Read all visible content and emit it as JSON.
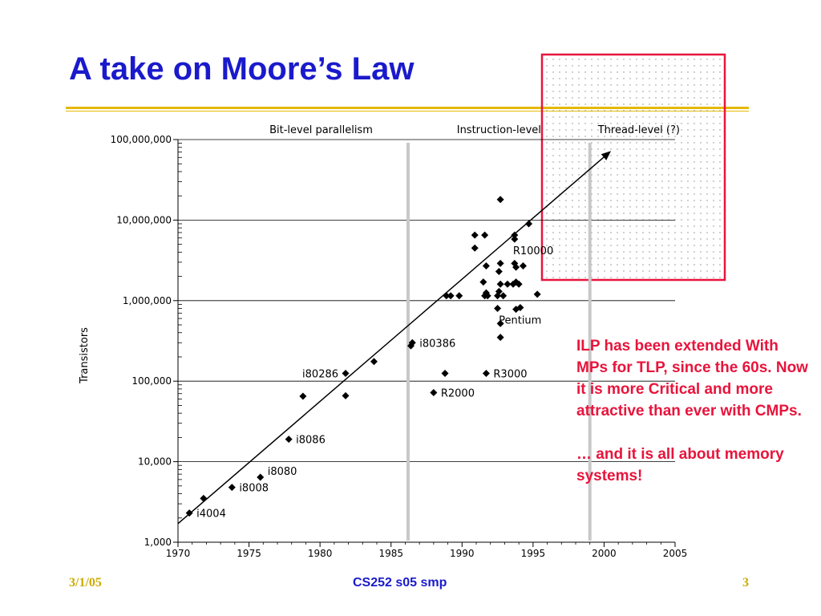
{
  "slide": {
    "title": "A take on Moore’s Law",
    "note_line1": "ILP has been extended With MPs for TLP, since the 60s.  Now it is more Critical and more attractive than ever with CMPs.",
    "note_line2": "… and it is all about memory systems!",
    "footer_left": "3/1/05",
    "footer_center": "CS252 s05 smp",
    "footer_right": "3"
  },
  "colors": {
    "title": "#1a1acc",
    "rule": "#e6b800",
    "note": "#e8143c",
    "highlight_box": "#e8143c",
    "points": "#000000",
    "era_lines": "#c8c8c8"
  },
  "chart_data": {
    "type": "scatter",
    "title": "",
    "xlabel": "",
    "ylabel": "Transistors",
    "xlim": [
      1970,
      2005
    ],
    "ylim": [
      1000,
      100000000
    ],
    "y_scale": "log",
    "x_ticks": [
      "1970",
      "1975",
      "1980",
      "1985",
      "1990",
      "1995",
      "2000",
      "2005"
    ],
    "y_ticks": [
      "1,000",
      "10,000",
      "100,000",
      "1,000,000",
      "10,000,000",
      "100,000,000"
    ],
    "eras": [
      {
        "label": "Bit-level parallelism",
        "boundary": 1986.2
      },
      {
        "label": "Instruction-level",
        "boundary": 1999.0
      },
      {
        "label": "Thread-level (?)"
      }
    ],
    "trend_line": [
      [
        1970,
        1700
      ],
      [
        2000.4,
        70000000
      ]
    ],
    "points": [
      [
        1970.8,
        2300
      ],
      [
        1971.8,
        3500
      ],
      [
        1973.8,
        4800
      ],
      [
        1975.8,
        6400
      ],
      [
        1977.8,
        19000
      ],
      [
        1978.8,
        65000
      ],
      [
        1981.8,
        125000
      ],
      [
        1981.8,
        66000
      ],
      [
        1983.8,
        175000
      ],
      [
        1986.4,
        275000
      ],
      [
        1986.5,
        300000
      ],
      [
        1988.0,
        72000
      ],
      [
        1988.8,
        125000
      ],
      [
        1988.9,
        1150000
      ],
      [
        1989.2,
        1150000
      ],
      [
        1989.8,
        1150000
      ],
      [
        1990.9,
        6500000
      ],
      [
        1990.9,
        4500000
      ],
      [
        1991.6,
        6500000
      ],
      [
        1991.5,
        1700000
      ],
      [
        1991.7,
        1250000
      ],
      [
        1991.6,
        1150000
      ],
      [
        1991.8,
        1150000
      ],
      [
        1991.7,
        2700000
      ],
      [
        1991.7,
        125000
      ],
      [
        1992.5,
        1150000
      ],
      [
        1992.7,
        1600000
      ],
      [
        1992.6,
        2300000
      ],
      [
        1992.7,
        2900000
      ],
      [
        1992.6,
        1300000
      ],
      [
        1992.5,
        800000
      ],
      [
        1992.7,
        520000
      ],
      [
        1992.7,
        350000
      ],
      [
        1992.9,
        1150000
      ],
      [
        1992.7,
        18000000
      ],
      [
        1993.2,
        1600000
      ],
      [
        1993.6,
        1600000
      ],
      [
        1993.7,
        2900000
      ],
      [
        1993.7,
        6500000
      ],
      [
        1993.7,
        5800000
      ],
      [
        1993.8,
        1700000
      ],
      [
        1993.8,
        2600000
      ],
      [
        1994.0,
        1600000
      ],
      [
        1993.8,
        780000
      ],
      [
        1994.1,
        820000
      ],
      [
        1994.3,
        2700000
      ],
      [
        1994.7,
        9000000
      ],
      [
        1995.3,
        1200000
      ]
    ],
    "labels": [
      {
        "text": "i4004",
        "x": 1970.8,
        "y": 2300,
        "anchor": "right"
      },
      {
        "text": "i8008",
        "x": 1973.8,
        "y": 4800,
        "anchor": "right"
      },
      {
        "text": "i8080",
        "x": 1975.8,
        "y": 6400,
        "anchor": "above-right"
      },
      {
        "text": "i8086",
        "x": 1977.8,
        "y": 19000,
        "anchor": "right"
      },
      {
        "text": "i80286",
        "x": 1981.8,
        "y": 125000,
        "anchor": "left"
      },
      {
        "text": "i80386",
        "x": 1986.5,
        "y": 300000,
        "anchor": "right"
      },
      {
        "text": "R2000",
        "x": 1988.0,
        "y": 72000,
        "anchor": "right"
      },
      {
        "text": "R3000",
        "x": 1991.7,
        "y": 125000,
        "anchor": "right"
      },
      {
        "text": "Pentium",
        "x": 1992.7,
        "y": 800000,
        "anchor": "below"
      },
      {
        "text": "R10000",
        "x": 1993.7,
        "y": 5800000,
        "anchor": "below"
      }
    ]
  }
}
